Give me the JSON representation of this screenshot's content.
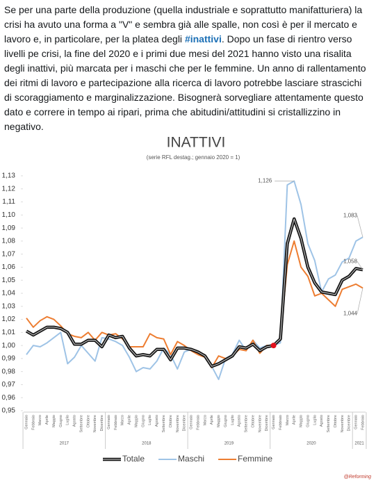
{
  "post": {
    "text_before": "Se per una parte della produzione (quella industriale e soprattutto manifatturiera) la crisi ha avuto una forma a \"V\" e sembra già alle spalle, non così è per il mercato e lavoro e, in particolare, per la platea degli ",
    "hashtag": "#inattivi",
    "text_after": ". Dopo un fase di rientro verso livelli pe crisi, la fine del 2020 e i primi due mesi del 2021 hanno visto una risalita degli inattivi, più marcata per i maschi che per le femmine. Un anno di rallentamento dei ritmi di lavoro e partecipazione alla ricerca di lavoro potrebbe lasciare strascichi di scoraggiamento e marginalizzazione. Bisognerà sorvegliare attentamente questo dato e correre in tempo ai ripari, prima che abitudini/attitudini si cristallizzino in negativo."
  },
  "chart_data": {
    "type": "line",
    "title": "INATTIVI",
    "subtitle": "(serie RFL destag.; gennaio 2020 = 1)",
    "watermark": "@Reforming",
    "categories": [
      "Gennaio",
      "Febbraio",
      "Marzo",
      "Aprile",
      "Maggio",
      "Giugno",
      "Luglio",
      "Agosto",
      "Settembre",
      "Ottobre",
      "Novembre",
      "Dicembre",
      "Gennaio",
      "Febbraio",
      "Marzo",
      "Aprile",
      "Maggio",
      "Giugno",
      "Luglio",
      "Agosto",
      "Settembre",
      "Ottobre",
      "Novembre",
      "Dicembre",
      "Gennaio",
      "Febbraio",
      "Marzo",
      "Aprile",
      "Maggio",
      "Giugno",
      "Luglio",
      "Agosto",
      "Settembre",
      "Ottobre",
      "Novembre",
      "Dicembre",
      "Gennaio",
      "Febbraio",
      "Marzo",
      "Aprile",
      "Maggio",
      "Giugno",
      "Luglio",
      "Agosto",
      "Settembre",
      "Ottobre",
      "Novembre",
      "Dicembre",
      "Gennaio",
      "Febbraio"
    ],
    "year_groups": [
      {
        "label": "2017",
        "months": 12
      },
      {
        "label": "2018",
        "months": 12
      },
      {
        "label": "2019",
        "months": 12
      },
      {
        "label": "2020",
        "months": 12
      },
      {
        "label": "2021",
        "months": 2
      }
    ],
    "series": [
      {
        "name": "Totale",
        "color": "#111111",
        "values": [
          1.011,
          1.008,
          1.011,
          1.014,
          1.014,
          1.013,
          1.01,
          1.001,
          1.001,
          1.004,
          1.004,
          0.999,
          1.008,
          1.006,
          1.007,
          0.998,
          0.992,
          0.993,
          0.992,
          0.997,
          0.997,
          0.989,
          0.998,
          0.998,
          0.997,
          0.995,
          0.992,
          0.984,
          0.986,
          0.989,
          0.992,
          0.999,
          0.998,
          1.001,
          0.996,
          0.999,
          1.0,
          1.005,
          1.078,
          1.097,
          1.082,
          1.06,
          1.048,
          1.041,
          1.04,
          1.039,
          1.05,
          1.053,
          1.059,
          1.058
        ],
        "value_labels": [
          null,
          null,
          null,
          null,
          null,
          null,
          null,
          null,
          null,
          null,
          null,
          null,
          null,
          null,
          null,
          null,
          null,
          null,
          null,
          null,
          null,
          null,
          null,
          null,
          null,
          null,
          null,
          null,
          null,
          null,
          null,
          null,
          null,
          null,
          null,
          null,
          null,
          null,
          null,
          null,
          null,
          null,
          null,
          null,
          null,
          null,
          null,
          null,
          null,
          "1,058"
        ]
      },
      {
        "name": "Maschi",
        "color": "#9ec3e6",
        "values": [
          0.993,
          1.0,
          0.999,
          1.002,
          1.006,
          1.01,
          0.986,
          0.991,
          1.0,
          0.994,
          0.988,
          1.006,
          1.005,
          1.003,
          1.0,
          0.991,
          0.98,
          0.983,
          0.982,
          0.988,
          0.998,
          0.993,
          0.982,
          0.995,
          0.997,
          0.994,
          0.991,
          0.984,
          0.974,
          0.99,
          0.993,
          1.004,
          0.996,
          1.004,
          0.998,
          1.0,
          1.0,
          1.002,
          1.123,
          1.126,
          1.108,
          1.078,
          1.065,
          1.041,
          1.051,
          1.054,
          1.064,
          1.067,
          1.08,
          1.083
        ],
        "value_labels": [
          null,
          null,
          null,
          null,
          null,
          null,
          null,
          null,
          null,
          null,
          null,
          null,
          null,
          null,
          null,
          null,
          null,
          null,
          null,
          null,
          null,
          null,
          null,
          null,
          null,
          null,
          null,
          null,
          null,
          null,
          null,
          null,
          null,
          null,
          null,
          null,
          null,
          null,
          null,
          "1,126",
          null,
          null,
          null,
          null,
          null,
          null,
          null,
          null,
          null,
          "1,083"
        ]
      },
      {
        "name": "Femmine",
        "color": "#ed7d31",
        "values": [
          1.021,
          1.014,
          1.019,
          1.022,
          1.02,
          1.015,
          1.009,
          1.007,
          1.006,
          1.01,
          1.004,
          1.01,
          1.008,
          1.009,
          1.005,
          0.999,
          0.999,
          0.999,
          1.009,
          1.006,
          1.005,
          0.993,
          1.003,
          1.0,
          0.996,
          0.993,
          0.991,
          0.983,
          0.992,
          0.99,
          0.992,
          0.997,
          0.996,
          1.004,
          0.994,
          1.0,
          1.0,
          1.006,
          1.062,
          1.08,
          1.06,
          1.053,
          1.038,
          1.04,
          1.035,
          1.03,
          1.043,
          1.045,
          1.047,
          1.044
        ],
        "value_labels": [
          null,
          null,
          null,
          null,
          null,
          null,
          null,
          null,
          null,
          null,
          null,
          null,
          null,
          null,
          null,
          null,
          null,
          null,
          null,
          null,
          null,
          null,
          null,
          null,
          null,
          null,
          null,
          null,
          null,
          null,
          null,
          null,
          null,
          null,
          null,
          null,
          null,
          null,
          null,
          null,
          null,
          null,
          null,
          null,
          null,
          null,
          null,
          null,
          null,
          "1,044"
        ]
      }
    ],
    "highlight_index": 36,
    "highlight_color": "#e3101c",
    "ylim": [
      0.95,
      1.13
    ],
    "yticks": [
      {
        "value": 0.95,
        "label": "0,95"
      },
      {
        "value": 0.96,
        "label": "0,96"
      },
      {
        "value": 0.97,
        "label": "0,97"
      },
      {
        "value": 0.98,
        "label": "0,98"
      },
      {
        "value": 0.99,
        "label": "0,99"
      },
      {
        "value": 1,
        "label": "1,00"
      },
      {
        "value": 1.01,
        "label": "1,01"
      },
      {
        "value": 1.02,
        "label": "1,02"
      },
      {
        "value": 1.03,
        "label": "1,03"
      },
      {
        "value": 1.04,
        "label": "1,04"
      },
      {
        "value": 1.05,
        "label": "1,05"
      },
      {
        "value": 1.06,
        "label": "1,06"
      },
      {
        "value": 1.07,
        "label": "1,07"
      },
      {
        "value": 1.08,
        "label": "1,08"
      },
      {
        "value": 1.09,
        "label": "1,09"
      },
      {
        "value": 1.1,
        "label": "1,10"
      },
      {
        "value": 1.11,
        "label": "1,11"
      },
      {
        "value": 1.12,
        "label": "1,12"
      },
      {
        "value": 1.13,
        "label": "1,13"
      }
    ],
    "grid": false,
    "legend": "bottom"
  }
}
